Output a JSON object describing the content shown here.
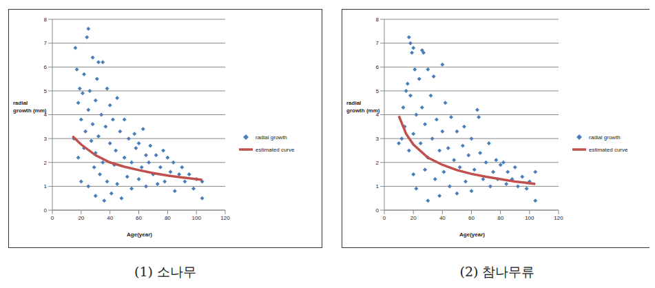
{
  "chart_data": [
    {
      "type": "scatter",
      "title": "(1) 소나무",
      "x_label": "Age(year)",
      "y_label": "radial growth (mm)",
      "xlim": [
        0,
        120
      ],
      "xticks": [
        0,
        20,
        40,
        60,
        80,
        100,
        120
      ],
      "ylim": [
        0,
        8
      ],
      "yticks": [
        0,
        1,
        2,
        3,
        4,
        5,
        6,
        7,
        8
      ],
      "grid": true,
      "legend": "right",
      "series": [
        {
          "name": "radial growth",
          "color": "#4a7ebb",
          "marker": "diamond",
          "x": [
            15,
            16,
            17,
            18,
            18,
            19,
            20,
            20,
            21,
            22,
            22,
            23,
            24,
            25,
            25,
            25,
            26,
            27,
            28,
            28,
            29,
            30,
            30,
            30,
            31,
            32,
            32,
            33,
            34,
            35,
            35,
            36,
            37,
            38,
            38,
            40,
            40,
            41,
            42,
            43,
            44,
            45,
            45,
            47,
            48,
            50,
            50,
            52,
            53,
            55,
            55,
            57,
            58,
            60,
            60,
            62,
            63,
            65,
            65,
            67,
            68,
            70,
            72,
            73,
            75,
            77,
            78,
            80,
            82,
            84,
            85,
            88,
            90,
            92,
            95,
            98,
            100,
            104,
            104
          ],
          "values": [
            3.0,
            6.8,
            5.9,
            4.5,
            2.2,
            5.1,
            3.8,
            1.2,
            4.9,
            5.7,
            2.6,
            3.3,
            7.25,
            7.6,
            4.2,
            1.0,
            5.0,
            2.9,
            6.4,
            3.6,
            1.8,
            4.6,
            2.4,
            0.6,
            5.5,
            6.2,
            3.1,
            1.5,
            4.0,
            6.2,
            2.0,
            0.4,
            3.5,
            5.1,
            1.2,
            2.8,
            4.4,
            0.7,
            3.8,
            1.9,
            2.5,
            4.7,
            1.1,
            3.3,
            0.5,
            2.2,
            3.8,
            1.4,
            3.0,
            2.0,
            0.9,
            3.2,
            2.6,
            1.3,
            2.8,
            1.8,
            3.4,
            2.3,
            1.0,
            2.0,
            2.7,
            1.5,
            2.3,
            1.1,
            1.8,
            2.5,
            1.2,
            2.2,
            1.6,
            2.0,
            0.8,
            1.5,
            1.8,
            1.2,
            1.5,
            0.9,
            1.3,
            0.5,
            1.2
          ]
        },
        {
          "name": "estimated curve",
          "type": "line",
          "color": "#c0504d",
          "line_style": "solid",
          "x": [
            14,
            20,
            30,
            40,
            50,
            60,
            70,
            80,
            90,
            104
          ],
          "values": [
            3.1,
            2.75,
            2.3,
            2.0,
            1.82,
            1.68,
            1.55,
            1.45,
            1.37,
            1.27
          ]
        }
      ]
    },
    {
      "type": "scatter",
      "title": "(2) 참나무류",
      "x_label": "Age(year)",
      "y_label": "radial growth (mm)",
      "xlim": [
        0,
        120
      ],
      "xticks": [
        0,
        20,
        40,
        60,
        80,
        100,
        120
      ],
      "ylim": [
        0,
        8
      ],
      "yticks": [
        0,
        1,
        2,
        3,
        4,
        5,
        6,
        7,
        8
      ],
      "grid": true,
      "legend": "right",
      "series": [
        {
          "name": "radial growth",
          "color": "#4a7ebb",
          "marker": "diamond",
          "x": [
            10,
            12,
            13,
            14,
            15,
            16,
            17,
            17,
            18,
            18,
            19,
            20,
            20,
            20,
            21,
            22,
            22,
            24,
            25,
            26,
            26,
            27,
            28,
            28,
            30,
            30,
            30,
            32,
            33,
            34,
            35,
            36,
            38,
            38,
            40,
            40,
            41,
            42,
            44,
            45,
            46,
            48,
            50,
            50,
            52,
            54,
            55,
            56,
            58,
            60,
            60,
            62,
            64,
            65,
            66,
            68,
            70,
            72,
            73,
            75,
            77,
            78,
            80,
            82,
            84,
            85,
            88,
            90,
            92,
            95,
            98,
            100,
            104,
            104
          ],
          "values": [
            2.8,
            3.0,
            4.3,
            3.5,
            5.0,
            5.3,
            7.25,
            2.5,
            7.0,
            4.8,
            6.6,
            6.8,
            3.2,
            1.5,
            5.9,
            4.0,
            0.9,
            5.5,
            2.8,
            6.7,
            4.3,
            6.6,
            1.7,
            3.6,
            5.9,
            2.2,
            0.4,
            4.8,
            3.0,
            5.6,
            1.3,
            3.8,
            2.5,
            0.6,
            6.1,
            3.3,
            1.6,
            4.5,
            2.6,
            1.0,
            3.9,
            2.1,
            3.3,
            0.7,
            1.8,
            2.7,
            3.5,
            1.2,
            2.3,
            3.0,
            0.8,
            1.7,
            4.2,
            3.9,
            2.4,
            1.3,
            2.0,
            2.8,
            1.0,
            1.6,
            2.1,
            1.3,
            1.9,
            2.0,
            1.1,
            1.6,
            1.3,
            1.8,
            1.0,
            1.4,
            0.9,
            1.2,
            0.4,
            1.6
          ]
        },
        {
          "name": "estimated curve",
          "type": "line",
          "color": "#c0504d",
          "line_style": "solid",
          "x": [
            10,
            15,
            20,
            30,
            40,
            50,
            60,
            70,
            80,
            90,
            104
          ],
          "values": [
            3.95,
            3.2,
            2.75,
            2.2,
            1.9,
            1.68,
            1.52,
            1.4,
            1.3,
            1.2,
            1.1
          ]
        }
      ]
    }
  ]
}
